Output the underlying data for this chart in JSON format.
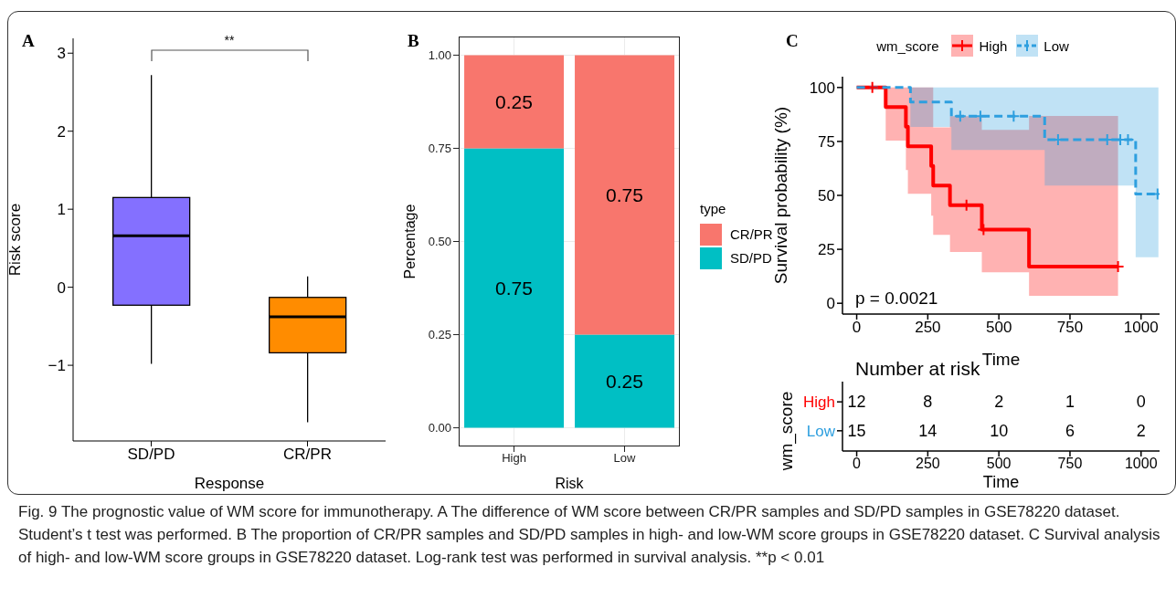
{
  "chart_data": [
    {
      "type": "box",
      "title": "A",
      "categories": [
        "SD/PD",
        "CR/PR"
      ],
      "colors": [
        "#8470ff",
        "#ff8c00"
      ],
      "boxes": [
        {
          "low": -0.98,
          "q1": -0.23,
          "median": 0.66,
          "q3": 1.15,
          "high": 2.72
        },
        {
          "low": -1.73,
          "q1": -0.84,
          "median": -0.38,
          "q3": -0.13,
          "high": 0.14
        }
      ],
      "ylim": [
        -1.97,
        3.19
      ],
      "yticks": [
        {
          "value": -1,
          "label": "−1"
        },
        0,
        1,
        2,
        3
      ],
      "xlabel": "Response",
      "ylabel": "Risk score",
      "annotations": [
        "**",
        "Fig. 9 The prognostic value of WM score for immunotherapy. A The difference of WM score between CR/PR samples and SD/PD samples in GSE78220 dataset. Student’s t test was performed. B The proportion of CR/PR samples and SD/PD samples in high- and low-WM score groups in GSE78220 dataset. C Survival analysis of high- and low-WM score groups in GSE78220 dataset. Log-rank test was performed in survival analysis. **p < 0.01"
      ]
    },
    {
      "type": "bar",
      "title": "B",
      "categories": [
        "High",
        "Low"
      ],
      "stacked": true,
      "data_labels": true,
      "series": [
        {
          "name": "SD/PD",
          "color": "#00bfc4",
          "values": [
            0.75,
            0.25
          ]
        },
        {
          "name": "CR/PR",
          "color": "#f8766d",
          "values": [
            0.25,
            0.75
          ]
        }
      ],
      "ylim": [
        -0.05,
        1.05
      ],
      "yticks": [
        {
          "value": 0,
          "label": "0.00"
        },
        {
          "value": 0.25,
          "label": "0.25"
        },
        {
          "value": 0.5,
          "label": "0.50"
        },
        {
          "value": 0.75,
          "label": "0.75"
        },
        {
          "value": 1,
          "label": "1.00"
        }
      ],
      "xlabel": "Risk",
      "ylabel": "Percentage",
      "legend": "right",
      "legend_title": "type",
      "grid": true
    },
    {
      "type": "step",
      "title": "C",
      "legend": "top",
      "legend_title": "wm_score",
      "xlabel": "Time",
      "ylabel": "Survival probability (%)",
      "xlim": [
        -50,
        1065
      ],
      "xticks": [
        0,
        250,
        500,
        750,
        1000
      ],
      "ylim": [
        -5,
        105
      ],
      "yticks": [
        0,
        25,
        50,
        75,
        100
      ],
      "series": [
        {
          "name": "High",
          "color": "#ff0000",
          "line_style": "solid",
          "x": [
            0,
            102,
            173,
            180,
            262,
            269,
            328,
            440,
            606,
            919
          ],
          "values": [
            100,
            90.9,
            81.8,
            72.7,
            63.6,
            54.5,
            45.5,
            34.1,
            17.0,
            17.0
          ],
          "lower": [
            100,
            75.4,
            61.7,
            50.7,
            40.6,
            31.7,
            23.8,
            14.4,
            3.5,
            3.5
          ],
          "upper": [
            100,
            100,
            100,
            100,
            100,
            81.5,
            86.7,
            80.4,
            86.8,
            86.8
          ]
        },
        {
          "name": "Low",
          "color": "#2e9fdf",
          "line_style": "dashed",
          "x": [
            0,
            189,
            333,
            661,
            981,
            1061
          ],
          "values": [
            100,
            93.3,
            86.7,
            75.8,
            50.6,
            50.6
          ],
          "lower": [
            100,
            81.7,
            71.1,
            54.6,
            21.3,
            21.3
          ],
          "upper": [
            100,
            100,
            100,
            100,
            100,
            100
          ]
        },
        {
          "type": "scatter",
          "color": "#ff0000",
          "marker": "cross",
          "x": [
            55,
            386,
            446,
            919
          ],
          "values": [
            100,
            45.5,
            34.1,
            17.0
          ]
        },
        {
          "type": "scatter",
          "color": "#2e9fdf",
          "marker": "cross",
          "x": [
            364,
            435,
            552,
            708,
            881,
            927,
            954,
            1058
          ],
          "values": [
            86.7,
            86.7,
            86.7,
            75.8,
            75.8,
            75.8,
            75.8,
            50.6
          ]
        }
      ],
      "annotations": [
        "p = 0.0021"
      ]
    },
    {
      "type": "heatmap",
      "title": "Number at risk",
      "categories": [
        "0",
        "250",
        "500",
        "750",
        "1000"
      ],
      "y_categories": [
        "High",
        "Low"
      ],
      "cells": [
        [
          12,
          8,
          2,
          1,
          0
        ],
        [
          15,
          14,
          10,
          6,
          2
        ]
      ],
      "data_labels": true,
      "xlabel": "Time",
      "ylabel": "wm_score"
    }
  ]
}
